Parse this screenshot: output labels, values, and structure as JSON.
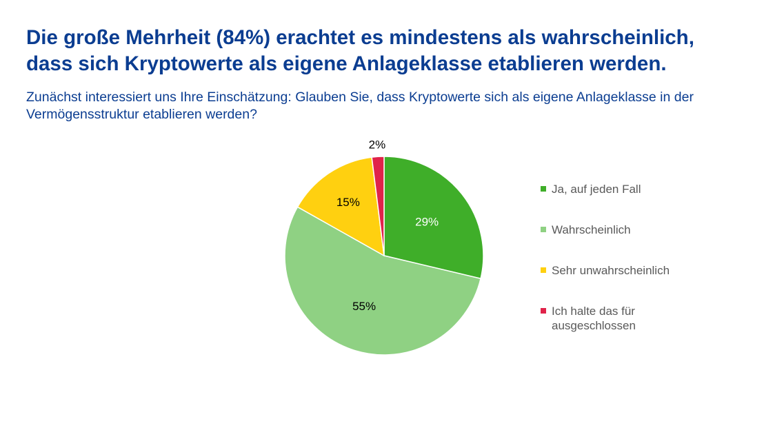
{
  "title": "Die große Mehrheit (84%) erachtet es mindestens als wahrscheinlich, dass sich Kryptowerte als eigene Anlageklasse etablieren werden.",
  "subtitle": "Zunächst interessiert uns Ihre Einschätzung: Glauben Sie, dass Kryptowerte sich als eigene Anlageklasse in der Vermögensstruktur etablieren werden?",
  "chart_data": {
    "type": "pie",
    "title": "",
    "value_unit": "%",
    "legend_position": "right",
    "slices": [
      {
        "label": "Ja, auf jeden Fall",
        "value": 29,
        "display": "29%",
        "color": "#3fae29",
        "label_color": "#ffffff"
      },
      {
        "label": "Wahrscheinlich",
        "value": 55,
        "display": "55%",
        "color": "#8fd183",
        "label_color": "#000000"
      },
      {
        "label": "Sehr unwahrscheinlich",
        "value": 15,
        "display": "15%",
        "color": "#ffd010",
        "label_color": "#000000"
      },
      {
        "label": "Ich halte das für ausgeschlossen",
        "value": 2,
        "display": "2%",
        "color": "#e0234a",
        "label_color": "#000000"
      }
    ]
  }
}
